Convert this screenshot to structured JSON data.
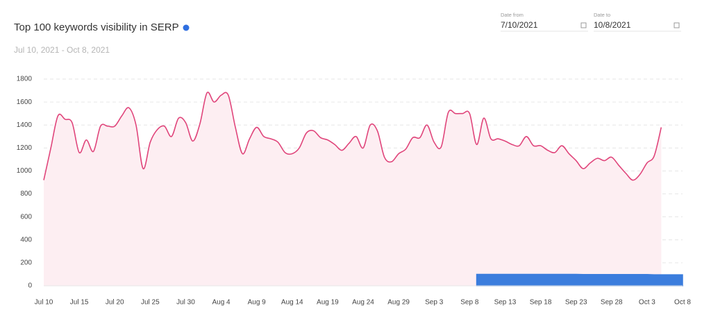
{
  "chart_data": {
    "type": "line",
    "title": "Top 100 keywords visibility in SERP",
    "subtitle": "Jul 10, 2021 - Oct 8, 2021",
    "date_from_label": "Date from",
    "date_from": "7/10/2021",
    "date_to_label": "Date to",
    "date_to": "10/8/2021",
    "categories": [
      "Jul 10",
      null,
      null,
      null,
      null,
      "Jul 15",
      null,
      null,
      null,
      null,
      "Jul 20",
      null,
      null,
      null,
      null,
      "Jul 25",
      null,
      null,
      null,
      null,
      "Jul 30",
      null,
      null,
      null,
      null,
      "Aug 4",
      null,
      null,
      null,
      null,
      "Aug 9",
      null,
      null,
      null,
      null,
      "Aug 14",
      null,
      null,
      null,
      null,
      "Aug 19",
      null,
      null,
      null,
      null,
      "Aug 24",
      null,
      null,
      null,
      null,
      "Aug 29",
      null,
      null,
      null,
      null,
      "Sep 3",
      null,
      null,
      null,
      null,
      "Sep 8",
      null,
      null,
      null,
      null,
      "Sep 13",
      null,
      null,
      null,
      null,
      "Sep 18",
      null,
      null,
      null,
      null,
      "Sep 23",
      null,
      null,
      null,
      null,
      "Sep 28",
      null,
      null,
      null,
      null,
      "Oct 3",
      null,
      null,
      null,
      null,
      "Oct 8"
    ],
    "series": [
      {
        "color": "#e0457b",
        "fill": "#fdeef2",
        "values": [
          920,
          1200,
          1480,
          1450,
          1420,
          1160,
          1270,
          1170,
          1390,
          1390,
          1390,
          1480,
          1550,
          1400,
          1020,
          1250,
          1360,
          1390,
          1300,
          1460,
          1420,
          1260,
          1410,
          1680,
          1600,
          1660,
          1660,
          1380,
          1150,
          1280,
          1380,
          1300,
          1280,
          1250,
          1160,
          1150,
          1200,
          1330,
          1350,
          1290,
          1270,
          1230,
          1180,
          1240,
          1300,
          1200,
          1400,
          1350,
          1120,
          1080,
          1150,
          1190,
          1290,
          1290,
          1400,
          1250,
          1210,
          1510,
          1500,
          1500,
          1500,
          1230,
          1460,
          1280,
          1280,
          1260,
          1230,
          1220,
          1300,
          1220,
          1220,
          1180,
          1160,
          1220,
          1150,
          1090,
          1020,
          1070,
          1110,
          1090,
          1120,
          1050,
          980,
          920,
          970,
          1070,
          1130,
          1380,
          null,
          null,
          null
        ]
      },
      {
        "color": "#3b7ddd",
        "fill": "#3b7ddd",
        "values": [
          null,
          null,
          null,
          null,
          null,
          null,
          null,
          null,
          null,
          null,
          null,
          null,
          null,
          null,
          null,
          null,
          null,
          null,
          null,
          null,
          null,
          null,
          null,
          null,
          null,
          null,
          null,
          null,
          null,
          null,
          null,
          null,
          null,
          null,
          null,
          null,
          null,
          null,
          null,
          null,
          null,
          null,
          null,
          null,
          null,
          null,
          null,
          null,
          null,
          null,
          null,
          null,
          null,
          null,
          null,
          null,
          null,
          null,
          null,
          null,
          null,
          100,
          100,
          100,
          100,
          100,
          100,
          100,
          100,
          100,
          100,
          100,
          100,
          100,
          100,
          100,
          98,
          98,
          98,
          98,
          98,
          98,
          98,
          98,
          98,
          98,
          96,
          96,
          96,
          96,
          96
        ]
      }
    ],
    "ylim": [
      0,
      1800
    ],
    "yticks": [
      0,
      200,
      400,
      600,
      800,
      1000,
      1200,
      1400,
      1600,
      1800
    ],
    "grid": true
  }
}
